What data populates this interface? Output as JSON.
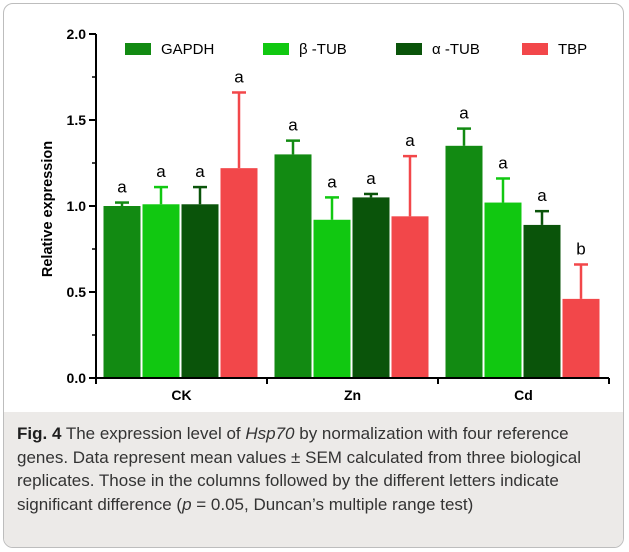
{
  "chart_data": {
    "type": "bar",
    "categories": [
      "CK",
      "Zn",
      "Cd"
    ],
    "ylabel": "Relative expression",
    "xlabel": "",
    "ylim": [
      0,
      2.0
    ],
    "yticks": [
      "0.0",
      "0.5",
      "1.0",
      "1.5",
      "2.0"
    ],
    "legend_placement": "top",
    "grid": false,
    "series": [
      {
        "name": "GAPDH",
        "color": "#128a12",
        "values": [
          1.0,
          1.3,
          1.35
        ],
        "errors": [
          0.02,
          0.08,
          0.1
        ],
        "letters": [
          "a",
          "a",
          "a"
        ]
      },
      {
        "name": "β -TUB",
        "color": "#11c811",
        "values": [
          1.01,
          0.92,
          1.02
        ],
        "errors": [
          0.1,
          0.13,
          0.14
        ],
        "letters": [
          "a",
          "a",
          "a"
        ]
      },
      {
        "name": "α -TUB",
        "color": "#0a540a",
        "values": [
          1.01,
          1.05,
          0.89
        ],
        "errors": [
          0.1,
          0.02,
          0.08
        ],
        "letters": [
          "a",
          "a",
          "a"
        ]
      },
      {
        "name": "TBP",
        "color": "#f2474a",
        "values": [
          1.22,
          0.94,
          0.46
        ],
        "errors": [
          0.44,
          0.35,
          0.2
        ],
        "letters": [
          "a",
          "a",
          "b"
        ]
      }
    ]
  },
  "caption": {
    "label": "Fig. 4",
    "text_1": " The expression level of ",
    "gene": "Hsp70",
    "text_2": " by normalization with four reference genes. Data represent mean values ± SEM calculated from three biological replicates. Those in the columns followed by the different letters indicate significant difference (",
    "p_symbol": "p",
    "text_3": " = 0.05, Duncan’s multiple range test)"
  }
}
